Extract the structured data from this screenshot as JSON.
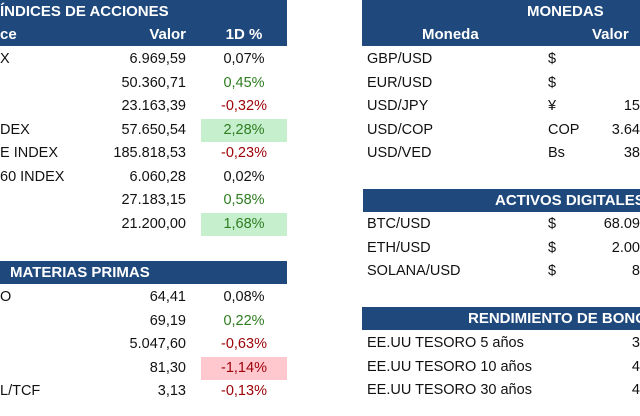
{
  "indices": {
    "title": "ÍNDICES DE ACCIONES",
    "col_name": "ce",
    "col_value": "Valor",
    "col_change": "1D %",
    "rows": [
      {
        "name": "X",
        "value": "6.969,59",
        "change": "0,07%",
        "tone": "neu",
        "fill": ""
      },
      {
        "name": "",
        "value": "50.360,71",
        "change": "0,45%",
        "tone": "pos",
        "fill": ""
      },
      {
        "name": "",
        "value": "23.163,39",
        "change": "-0,32%",
        "tone": "neg",
        "fill": ""
      },
      {
        "name": "DEX",
        "value": "57.650,54",
        "change": "2,28%",
        "tone": "pos",
        "fill": "gfill"
      },
      {
        "name": "E INDEX",
        "value": "185.818,53",
        "change": "-0,23%",
        "tone": "neg",
        "fill": ""
      },
      {
        "name": "60 INDEX",
        "value": "6.060,28",
        "change": "0,02%",
        "tone": "neu",
        "fill": ""
      },
      {
        "name": "",
        "value": "27.183,15",
        "change": "0,58%",
        "tone": "pos",
        "fill": ""
      },
      {
        "name": "",
        "value": "21.200,00",
        "change": "1,68%",
        "tone": "pos",
        "fill": "gfill"
      }
    ]
  },
  "commodities": {
    "title": "MATERIAS PRIMAS",
    "rows": [
      {
        "name": "O",
        "value": "64,41",
        "change": "0,08%",
        "tone": "neu",
        "fill": ""
      },
      {
        "name": "",
        "value": "69,19",
        "change": "0,22%",
        "tone": "pos",
        "fill": ""
      },
      {
        "name": "",
        "value": "5.047,60",
        "change": "-0,63%",
        "tone": "neg",
        "fill": ""
      },
      {
        "name": "",
        "value": "81,30",
        "change": "-1,14%",
        "tone": "neg",
        "fill": "rfill"
      },
      {
        "name": "L/TCF",
        "value": "3,13",
        "change": "-0,13%",
        "tone": "neg",
        "fill": ""
      }
    ]
  },
  "currencies": {
    "title": "MONEDAS",
    "col_name": "Moneda",
    "col_value": "Valor",
    "rows": [
      {
        "name": "GBP/USD",
        "symbol": "$",
        "value": ""
      },
      {
        "name": "EUR/USD",
        "symbol": "$",
        "value": ""
      },
      {
        "name": "USD/JPY",
        "symbol": "¥",
        "value": "15"
      },
      {
        "name": "USD/COP",
        "symbol": "COP",
        "value": "3.64"
      },
      {
        "name": "USD/VED",
        "symbol": "Bs",
        "value": "38"
      }
    ]
  },
  "digital": {
    "title": "ACTIVOS DIGITALES",
    "rows": [
      {
        "name": "BTC/USD",
        "symbol": "$",
        "value": "68.09"
      },
      {
        "name": "ETH/USD",
        "symbol": "$",
        "value": "2.00"
      },
      {
        "name": "SOLANA/USD",
        "symbol": "$",
        "value": "8"
      }
    ]
  },
  "bonds": {
    "title": "RENDIMIENTO DE BONO",
    "rows": [
      {
        "name": "EE.UU TESORO 5 años",
        "value": "3"
      },
      {
        "name": "EE.UU TESORO 10 años",
        "value": "4"
      },
      {
        "name": "EE.UU TESORO 30 años",
        "value": "4"
      }
    ]
  }
}
